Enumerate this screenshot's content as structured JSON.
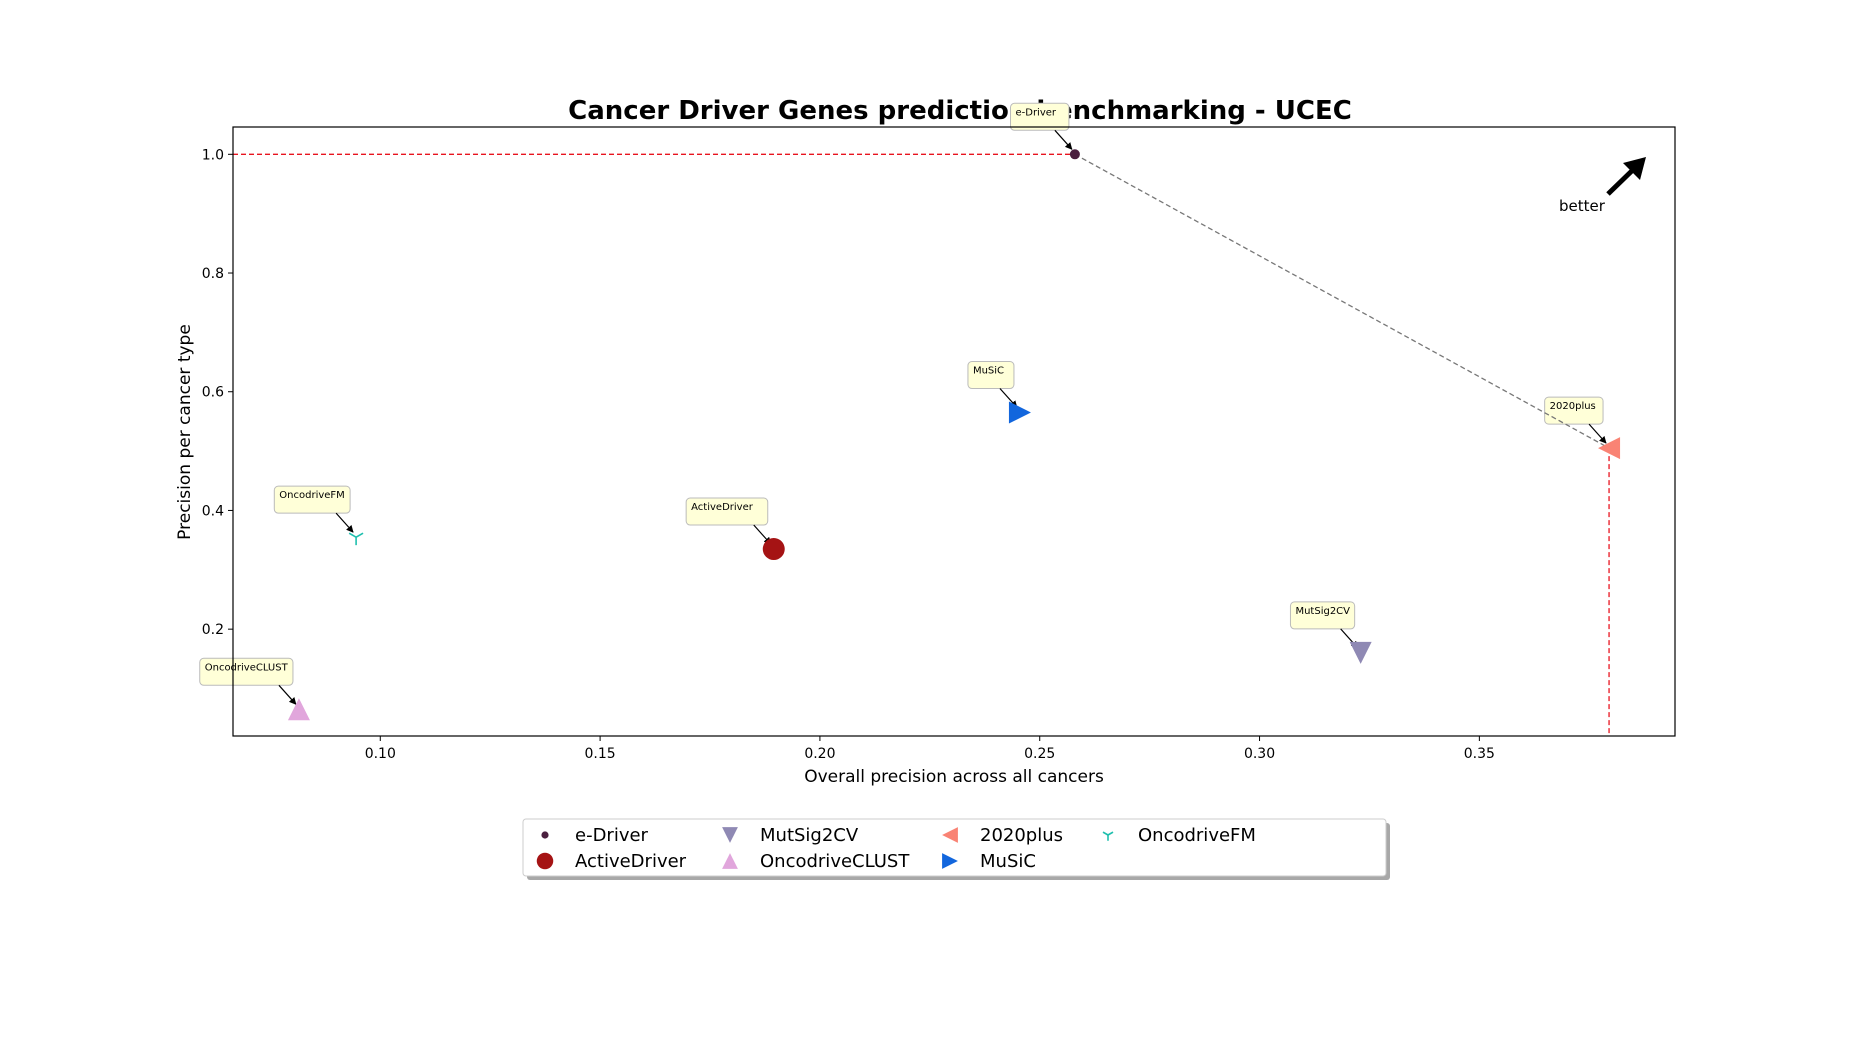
{
  "chart_data": {
    "type": "scatter",
    "title": "Cancer Driver Genes prediction benchmarking - UCEC",
    "xlabel": "Overall precision across all cancers",
    "ylabel": "Precision per cancer type",
    "xlim": [
      0.0665,
      0.3945
    ],
    "ylim": [
      0.02,
      1.046
    ],
    "xticks": [
      0.1,
      0.15,
      0.2,
      0.25,
      0.3,
      0.35
    ],
    "yticks": [
      0.2,
      0.4,
      0.6,
      0.8,
      1.0
    ],
    "xtick_labels": [
      "0.10",
      "0.15",
      "0.20",
      "0.25",
      "0.30",
      "0.35"
    ],
    "ytick_labels": [
      "0.2",
      "0.4",
      "0.6",
      "0.8",
      "1.0"
    ],
    "grid": false,
    "legend_position": "bottom-center",
    "series": [
      {
        "name": "e-Driver",
        "x": 0.258,
        "y": 1.0,
        "marker": "circle-small",
        "color": "#4b1f3f"
      },
      {
        "name": "ActiveDriver",
        "x": 0.1895,
        "y": 0.335,
        "marker": "circle-large",
        "color": "#a51314"
      },
      {
        "name": "MutSig2CV",
        "x": 0.323,
        "y": 0.16,
        "marker": "triangle-down",
        "color": "#8f89b4"
      },
      {
        "name": "OncodriveCLUST",
        "x": 0.0815,
        "y": 0.065,
        "marker": "triangle-up",
        "color": "#e1a6dc"
      },
      {
        "name": "2020plus",
        "x": 0.3795,
        "y": 0.505,
        "marker": "triangle-left",
        "color": "#f98374"
      },
      {
        "name": "MuSiC",
        "x": 0.2455,
        "y": 0.565,
        "marker": "triangle-right",
        "color": "#1266dd"
      },
      {
        "name": "OncodriveFM",
        "x": 0.0945,
        "y": 0.355,
        "marker": "tri-down",
        "color": "#1fbfae"
      }
    ],
    "pareto_front": [
      "e-Driver",
      "2020plus"
    ],
    "annotation_text": "better"
  }
}
